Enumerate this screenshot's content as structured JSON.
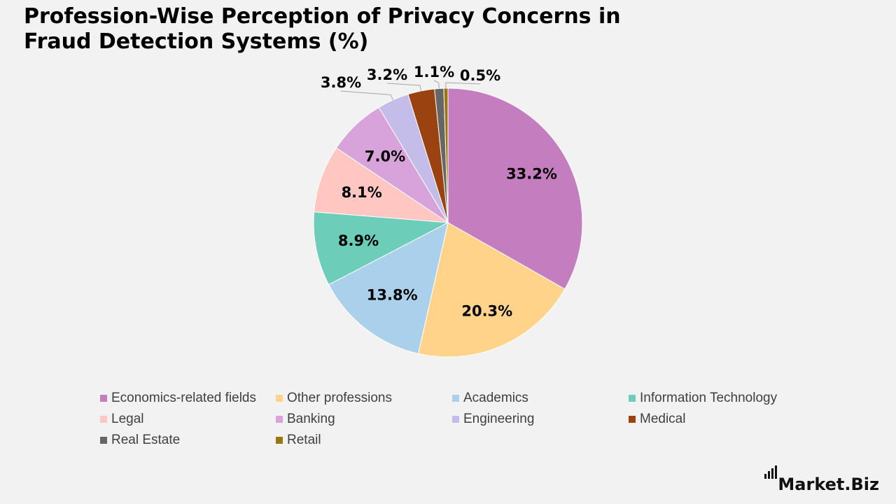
{
  "header": {
    "title": "Profession-Wise Perception of Privacy Concerns in Fraud Detection Systems (%)"
  },
  "chart_data": {
    "type": "pie",
    "title": "Profession-Wise Perception of Privacy Concerns in Fraud Detection Systems (%)",
    "categories": [
      "Economics-related fields",
      "Other professions",
      "Academics",
      "Information Technology",
      "Legal",
      "Banking",
      "Engineering",
      "Medical",
      "Real Estate",
      "Retail"
    ],
    "values": [
      33.2,
      20.3,
      13.8,
      8.9,
      8.1,
      7.0,
      3.8,
      3.2,
      1.1,
      0.5
    ],
    "labels": [
      "33.2%",
      "20.3%",
      "13.8%",
      "8.9%",
      "8.1%",
      "7.0%",
      "3.8%",
      "3.2%",
      "1.1%",
      "0.5%"
    ],
    "colors": [
      "#c47dbe",
      "#ffd38a",
      "#abd0eb",
      "#6ccdb9",
      "#ffc6c2",
      "#d8a3da",
      "#c4bde9",
      "#9a4210",
      "#666666",
      "#9a7510"
    ],
    "legend_position": "bottom",
    "start_angle": "12 o'clock, clockwise"
  },
  "legend": {
    "items": [
      {
        "label": "Economics-related fields",
        "color": "#c47dbe"
      },
      {
        "label": "Other professions",
        "color": "#ffd38a"
      },
      {
        "label": "Academics",
        "color": "#abd0eb"
      },
      {
        "label": "Information Technology",
        "color": "#6ccdb9"
      },
      {
        "label": "Legal",
        "color": "#ffc6c2"
      },
      {
        "label": "Banking",
        "color": "#d8a3da"
      },
      {
        "label": "Engineering",
        "color": "#c4bde9"
      },
      {
        "label": "Medical",
        "color": "#9a4210"
      },
      {
        "label": "Real Estate",
        "color": "#666666"
      },
      {
        "label": "Retail",
        "color": "#9a7510"
      }
    ]
  },
  "branding": {
    "logo_text": "Market.Biz"
  }
}
